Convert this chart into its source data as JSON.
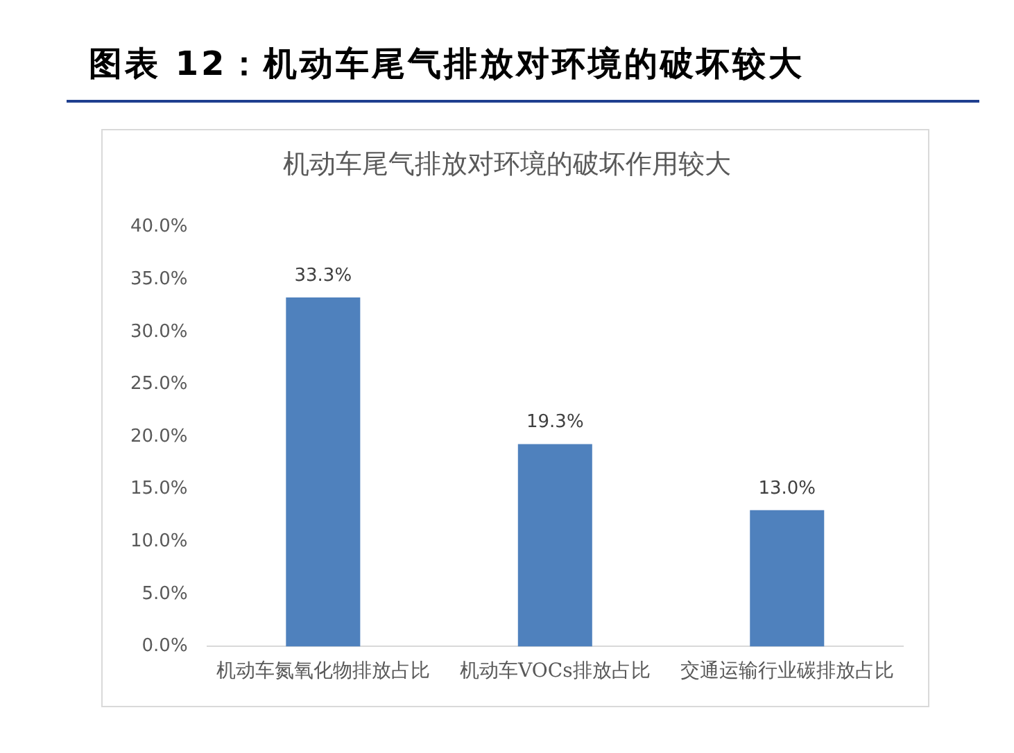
{
  "chart_data": {
    "type": "bar",
    "title": "图表 12：机动车尾气排放对环境的破坏较大",
    "subtitle": "机动车尾气排放对环境的破坏作用较大",
    "categories": [
      "机动车氮氧化物排放占比",
      "机动车VOCs排放占比",
      "交通运输行业碳排放占比"
    ],
    "values": [
      33.3,
      19.3,
      13.0
    ],
    "value_labels": [
      "33.3%",
      "19.3%",
      "13.0%"
    ],
    "color": "#4f81bd",
    "ylim": [
      0,
      40
    ],
    "yticks": [
      {
        "value": 0,
        "label": "0.0%"
      },
      {
        "value": 5,
        "label": "5.0%"
      },
      {
        "value": 10,
        "label": "10.0%"
      },
      {
        "value": 15,
        "label": "15.0%"
      },
      {
        "value": 20,
        "label": "20.0%"
      },
      {
        "value": 25,
        "label": "25.0%"
      },
      {
        "value": 30,
        "label": "30.0%"
      },
      {
        "value": 35,
        "label": "35.0%"
      },
      {
        "value": 40,
        "label": "40.0%"
      }
    ]
  }
}
